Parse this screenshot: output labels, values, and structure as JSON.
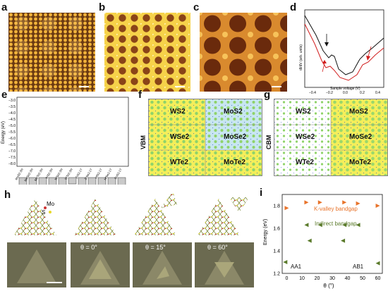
{
  "panels": {
    "a": "a",
    "b": "b",
    "c": "c",
    "d": "d",
    "e": "e",
    "f": "f",
    "g": "g",
    "h": "h",
    "i": "i"
  },
  "panel_d": {
    "xlabel": "Sample voltage (V)",
    "ylabel": "dI/dV (arb. units)",
    "xticks": [
      "−0.4",
      "−0.2",
      "0.0",
      "0.2",
      "0.4"
    ],
    "series_colors": {
      "black": "#111111",
      "red": "#d11d1d"
    }
  },
  "panel_e": {
    "ylabel": "Energy (eV)",
    "yticks": [
      "−3.0",
      "−3.5",
      "−4.0",
      "−4.5",
      "−5.0",
      "−5.5",
      "−6.0",
      "−6.5",
      "−7.0",
      "−7.5",
      "−8.0"
    ],
    "materials": [
      "MoS2-2H",
      "MoSe2-2H",
      "MoTe2-2H",
      "WS2-2H",
      "WSe2-2H",
      "WTe2-2H",
      "ZrS2-1T",
      "ZrSe2-1T",
      "HfS2-1T",
      "HfSe2-1T",
      "SnS2-1T"
    ]
  },
  "panel_f": {
    "side_label": "VBM",
    "cells": [
      [
        "WS2",
        "MoS2"
      ],
      [
        "WSe2",
        "MoSe2"
      ],
      [
        "WTe2",
        "MoTe2"
      ]
    ]
  },
  "panel_g": {
    "side_label": "CBM",
    "cells": [
      [
        "WS2",
        "MoS2"
      ],
      [
        "WSe2",
        "MoSe2"
      ],
      [
        "WTe2",
        "MoTe2"
      ]
    ]
  },
  "panel_h": {
    "atom_labels": {
      "mo": "Mo",
      "s": "S"
    },
    "angles": [
      "θ = 0°",
      "θ = 15°",
      "θ = 60°"
    ],
    "colors": {
      "mo": "#cc3333",
      "s": "#e8d82a",
      "bond": "#7a8a3a"
    }
  },
  "chart_data": {
    "type": "scatter",
    "xlabel": "θ (°)",
    "ylabel": "Energy (eV)",
    "xlim": [
      -3,
      63
    ],
    "ylim": [
      1.2,
      1.9
    ],
    "xticks": [
      0,
      10,
      20,
      30,
      40,
      50,
      60
    ],
    "yticks": [
      1.2,
      1.4,
      1.6,
      1.8
    ],
    "annotations": [
      "K-valley bandgap",
      "Indirect bandgap",
      "AA1",
      "AB1"
    ],
    "series": [
      {
        "color": "#e8732a",
        "points": [
          [
            0,
            1.78
          ],
          [
            13,
            1.83
          ],
          [
            22,
            1.83
          ],
          [
            38,
            1.83
          ],
          [
            47,
            1.82
          ],
          [
            60,
            1.8
          ]
        ]
      },
      {
        "color": "#5a7a2a",
        "points": [
          [
            13,
            1.63
          ],
          [
            22,
            1.63
          ],
          [
            38,
            1.63
          ],
          [
            47,
            1.63
          ],
          [
            15,
            1.49
          ],
          [
            37,
            1.49
          ],
          [
            -1,
            1.3
          ],
          [
            60,
            1.29
          ]
        ]
      }
    ]
  }
}
